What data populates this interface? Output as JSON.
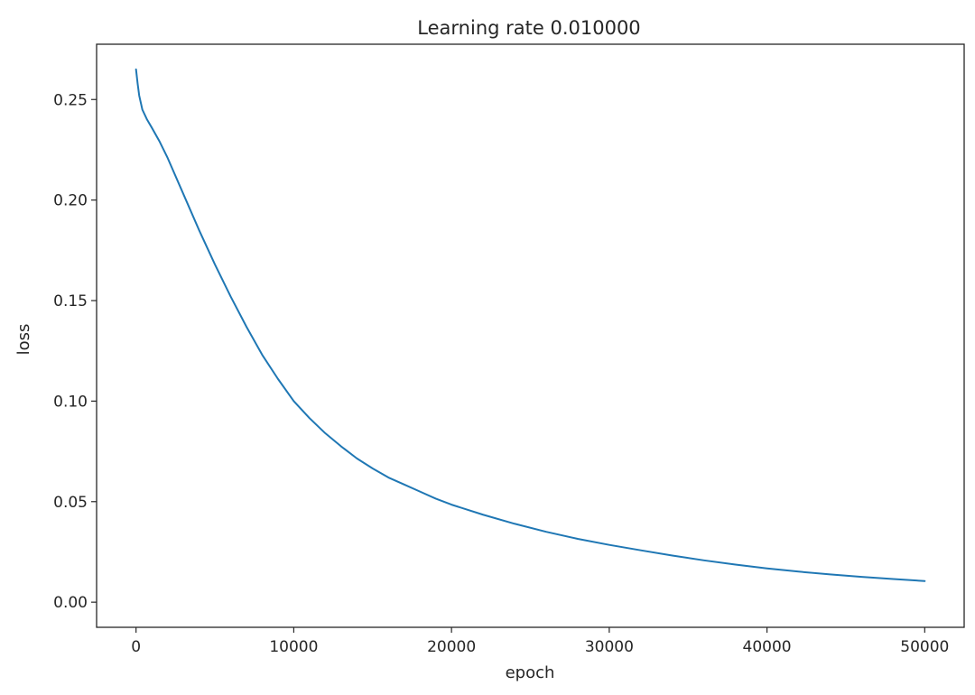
{
  "chart_data": {
    "type": "line",
    "title": "Learning rate 0.010000",
    "xlabel": "epoch",
    "ylabel": "loss",
    "xlim": [
      -2500,
      52500
    ],
    "ylim": [
      -0.0125,
      0.2775
    ],
    "xticks": [
      0,
      10000,
      20000,
      30000,
      40000,
      50000
    ],
    "xtick_labels": [
      "0",
      "10000",
      "20000",
      "30000",
      "40000",
      "50000"
    ],
    "yticks": [
      0.0,
      0.05,
      0.1,
      0.15,
      0.2,
      0.25
    ],
    "ytick_labels": [
      "0.00",
      "0.05",
      "0.10",
      "0.15",
      "0.20",
      "0.25"
    ],
    "grid": false,
    "line_color": "#1f77b4",
    "series": [
      {
        "x": [
          0,
          100,
          200,
          400,
          700,
          1000,
          1500,
          2000,
          3000,
          4000,
          5000,
          6000,
          7000,
          8000,
          9000,
          10000,
          11000,
          12000,
          13000,
          14000,
          15000,
          16000,
          17000,
          18000,
          19000,
          20000,
          22000,
          24000,
          26000,
          28000,
          30000,
          32000,
          34000,
          36000,
          38000,
          40000,
          42000,
          44000,
          46000,
          48000,
          50000
        ],
        "y": [
          0.265,
          0.258,
          0.252,
          0.245,
          0.24,
          0.236,
          0.229,
          0.221,
          0.203,
          0.185,
          0.168,
          0.152,
          0.137,
          0.123,
          0.111,
          0.1,
          0.0915,
          0.084,
          0.0775,
          0.0715,
          0.0665,
          0.062,
          0.0585,
          0.055,
          0.0515,
          0.0485,
          0.0435,
          0.039,
          0.035,
          0.0315,
          0.0285,
          0.0258,
          0.0232,
          0.0208,
          0.0187,
          0.0168,
          0.0152,
          0.0138,
          0.0126,
          0.0115,
          0.0105
        ]
      }
    ]
  }
}
